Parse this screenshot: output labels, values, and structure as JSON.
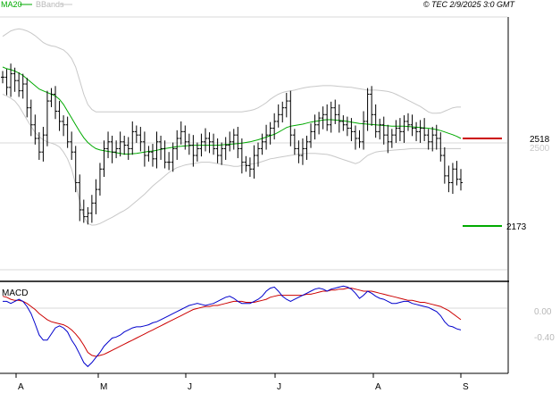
{
  "header": {
    "ma_label": "MA20",
    "bb_label": "BBands",
    "stamp": "© TEC 2/9/2025 3:0 GMT"
  },
  "price_panel": {
    "axis_label": "2500",
    "resistance_label": "2518",
    "support_label": "2173"
  },
  "macd_panel": {
    "title": "MACD",
    "tick_zero": "0.00",
    "tick_neg": "-0.40"
  },
  "x_ticks": [
    "A",
    "M",
    "J",
    "J",
    "A",
    "S"
  ],
  "colors": {
    "ma": "#00aa00",
    "bands": "#c8c8c8",
    "price_bar": "#000000",
    "resistance": "#cc0000",
    "support": "#00aa00",
    "macd": "#0000cc",
    "signal": "#cc0000",
    "grid": "#d9d9d9"
  },
  "chart_data": {
    "type": "line",
    "price_ylim": [
      2044,
      2787
    ],
    "macd_ylim": [
      -0.68,
      0.17
    ],
    "x_ticks": [
      "A",
      "M",
      "J",
      "J",
      "A",
      "S"
    ],
    "reference_levels": {
      "resistance": 2518,
      "support": 2173,
      "axis_tick": 2500
    },
    "price": [
      2610,
      2580,
      2620,
      2600,
      2570,
      2590,
      2520,
      2470,
      2430,
      2390,
      2440,
      2540,
      2560,
      2510,
      2480,
      2470,
      2420,
      2390,
      2300,
      2220,
      2200,
      2210,
      2240,
      2280,
      2340,
      2400,
      2420,
      2390,
      2400,
      2420,
      2410,
      2400,
      2450,
      2440,
      2420,
      2380,
      2390,
      2370,
      2420,
      2400,
      2360,
      2360,
      2400,
      2430,
      2450,
      2420,
      2410,
      2380,
      2400,
      2420,
      2430,
      2420,
      2400,
      2380,
      2400,
      2410,
      2420,
      2440,
      2400,
      2360,
      2350,
      2340,
      2380,
      2400,
      2420,
      2440,
      2460,
      2480,
      2500,
      2520,
      2540,
      2440,
      2400,
      2380,
      2400,
      2420,
      2450,
      2470,
      2490,
      2500,
      2470,
      2520,
      2500,
      2480,
      2470,
      2460,
      2450,
      2430,
      2420,
      2480,
      2560,
      2500,
      2450,
      2470,
      2440,
      2420,
      2440,
      2460,
      2450,
      2480,
      2470,
      2460,
      2450,
      2460,
      2440,
      2420,
      2440,
      2430,
      2380,
      2320,
      2300,
      2340,
      2310,
      2300
    ],
    "ma20": [
      2640,
      2635,
      2632,
      2628,
      2622,
      2615,
      2605,
      2595,
      2585,
      2575,
      2570,
      2565,
      2560,
      2555,
      2545,
      2530,
      2510,
      2490,
      2470,
      2450,
      2432,
      2418,
      2408,
      2400,
      2396,
      2394,
      2392,
      2390,
      2388,
      2386,
      2384,
      2384,
      2385,
      2386,
      2388,
      2390,
      2392,
      2393,
      2395,
      2398,
      2400,
      2402,
      2404,
      2406,
      2407,
      2408,
      2409,
      2410,
      2410,
      2410,
      2410,
      2410,
      2410,
      2410,
      2411,
      2412,
      2413,
      2414,
      2415,
      2416,
      2418,
      2420,
      2423,
      2426,
      2430,
      2434,
      2438,
      2442,
      2448,
      2455,
      2462,
      2466,
      2468,
      2470,
      2472,
      2475,
      2478,
      2480,
      2482,
      2484,
      2485,
      2485,
      2484,
      2483,
      2482,
      2480,
      2478,
      2476,
      2474,
      2473,
      2472,
      2471,
      2470,
      2469,
      2468,
      2467,
      2466,
      2466,
      2466,
      2466,
      2465,
      2464,
      2463,
      2462,
      2461,
      2460,
      2458,
      2456,
      2453,
      2449,
      2445,
      2441,
      2436,
      2430
    ],
    "bb_upper": [
      2730,
      2738,
      2746,
      2750,
      2752,
      2750,
      2746,
      2740,
      2732,
      2722,
      2712,
      2706,
      2702,
      2700,
      2695,
      2690,
      2680,
      2665,
      2640,
      2600,
      2560,
      2530,
      2515,
      2508,
      2508,
      2508,
      2508,
      2508,
      2508,
      2508,
      2508,
      2508,
      2508,
      2508,
      2508,
      2508,
      2508,
      2508,
      2508,
      2508,
      2508,
      2508,
      2508,
      2508,
      2508,
      2508,
      2508,
      2508,
      2508,
      2508,
      2508,
      2508,
      2508,
      2508,
      2508,
      2508,
      2508,
      2508,
      2508,
      2508,
      2510,
      2512,
      2515,
      2520,
      2527,
      2535,
      2545,
      2553,
      2560,
      2565,
      2568,
      2570,
      2572,
      2575,
      2578,
      2580,
      2582,
      2583,
      2584,
      2585,
      2585,
      2585,
      2584,
      2583,
      2582,
      2581,
      2580,
      2578,
      2576,
      2574,
      2572,
      2572,
      2572,
      2571,
      2570,
      2568,
      2565,
      2560,
      2554,
      2548,
      2542,
      2536,
      2530,
      2524,
      2516,
      2508,
      2504,
      2504,
      2505,
      2510,
      2515,
      2520,
      2522,
      2522
    ],
    "bb_lower": [
      2560,
      2555,
      2548,
      2540,
      2525,
      2505,
      2485,
      2465,
      2448,
      2435,
      2426,
      2420,
      2416,
      2412,
      2405,
      2390,
      2370,
      2340,
      2295,
      2245,
      2200,
      2180,
      2175,
      2176,
      2180,
      2186,
      2192,
      2198,
      2205,
      2212,
      2218,
      2226,
      2236,
      2246,
      2256,
      2266,
      2278,
      2290,
      2300,
      2310,
      2320,
      2330,
      2338,
      2344,
      2348,
      2352,
      2354,
      2356,
      2358,
      2360,
      2360,
      2360,
      2358,
      2356,
      2354,
      2352,
      2350,
      2348,
      2348,
      2350,
      2352,
      2354,
      2356,
      2358,
      2362,
      2366,
      2370,
      2372,
      2374,
      2376,
      2378,
      2380,
      2382,
      2384,
      2385,
      2386,
      2386,
      2386,
      2385,
      2384,
      2383,
      2380,
      2376,
      2372,
      2368,
      2364,
      2360,
      2356,
      2360,
      2370,
      2380,
      2385,
      2390,
      2392,
      2393,
      2394,
      2395,
      2396,
      2397,
      2398,
      2399,
      2400,
      2400,
      2400,
      2400,
      2400,
      2400,
      2400,
      2400,
      2400,
      2400,
      2400,
      2400,
      2400
    ],
    "macd": [
      0.0,
      0.0,
      -0.02,
      0.0,
      0.02,
      0.0,
      -0.05,
      -0.12,
      -0.22,
      -0.33,
      -0.38,
      -0.38,
      -0.32,
      -0.26,
      -0.24,
      -0.26,
      -0.3,
      -0.38,
      -0.44,
      -0.52,
      -0.6,
      -0.64,
      -0.6,
      -0.55,
      -0.5,
      -0.44,
      -0.4,
      -0.36,
      -0.35,
      -0.33,
      -0.3,
      -0.28,
      -0.26,
      -0.25,
      -0.25,
      -0.24,
      -0.23,
      -0.21,
      -0.2,
      -0.18,
      -0.16,
      -0.14,
      -0.12,
      -0.1,
      -0.08,
      -0.06,
      -0.04,
      -0.03,
      -0.02,
      -0.03,
      -0.04,
      -0.03,
      -0.02,
      0.0,
      0.02,
      0.04,
      0.05,
      0.03,
      0.0,
      -0.02,
      -0.02,
      -0.02,
      0.0,
      0.02,
      0.05,
      0.1,
      0.13,
      0.14,
      0.1,
      0.05,
      0.02,
      0.0,
      0.02,
      0.04,
      0.06,
      0.08,
      0.1,
      0.12,
      0.13,
      0.12,
      0.1,
      0.12,
      0.13,
      0.14,
      0.15,
      0.14,
      0.12,
      0.08,
      0.03,
      0.06,
      0.1,
      0.08,
      0.05,
      0.03,
      0.02,
      0.0,
      -0.02,
      -0.02,
      -0.01,
      0.0,
      0.0,
      -0.02,
      -0.03,
      -0.04,
      -0.05,
      -0.06,
      -0.08,
      -0.1,
      -0.14,
      -0.2,
      -0.24,
      -0.25,
      -0.27,
      -0.28
    ],
    "signal": [
      0.05,
      0.04,
      0.02,
      0.01,
      0.01,
      0.0,
      -0.02,
      -0.05,
      -0.08,
      -0.12,
      -0.15,
      -0.18,
      -0.2,
      -0.21,
      -0.22,
      -0.23,
      -0.25,
      -0.28,
      -0.32,
      -0.37,
      -0.43,
      -0.5,
      -0.53,
      -0.54,
      -0.53,
      -0.52,
      -0.5,
      -0.48,
      -0.46,
      -0.44,
      -0.42,
      -0.4,
      -0.38,
      -0.36,
      -0.34,
      -0.32,
      -0.3,
      -0.28,
      -0.26,
      -0.24,
      -0.22,
      -0.2,
      -0.18,
      -0.16,
      -0.14,
      -0.12,
      -0.1,
      -0.08,
      -0.07,
      -0.06,
      -0.05,
      -0.05,
      -0.04,
      -0.04,
      -0.03,
      -0.02,
      -0.01,
      0.0,
      0.0,
      0.0,
      -0.01,
      -0.01,
      -0.01,
      0.0,
      0.01,
      0.02,
      0.04,
      0.05,
      0.06,
      0.06,
      0.06,
      0.06,
      0.06,
      0.06,
      0.06,
      0.07,
      0.07,
      0.08,
      0.09,
      0.1,
      0.1,
      0.11,
      0.11,
      0.12,
      0.12,
      0.13,
      0.13,
      0.12,
      0.11,
      0.1,
      0.1,
      0.1,
      0.09,
      0.08,
      0.07,
      0.06,
      0.05,
      0.04,
      0.03,
      0.02,
      0.01,
      0.01,
      0.0,
      -0.01,
      -0.01,
      -0.02,
      -0.03,
      -0.04,
      -0.05,
      -0.07,
      -0.09,
      -0.12,
      -0.15,
      -0.18
    ]
  }
}
